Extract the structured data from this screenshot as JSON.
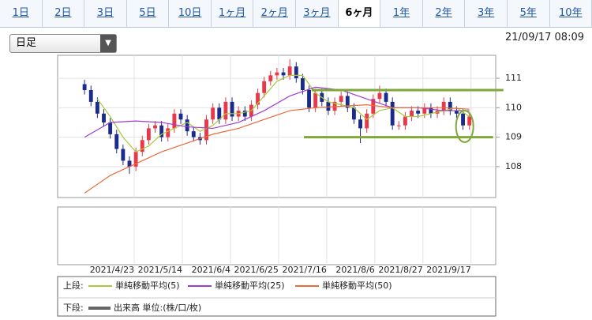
{
  "tabs": [
    "1日",
    "2日",
    "3日",
    "5日",
    "10日",
    "1ヶ月",
    "2ヶ月",
    "3ヶ月",
    "6ヶ月",
    "1年",
    "2年",
    "3年",
    "5年",
    "10年"
  ],
  "active_tab": 8,
  "period_select": "日足",
  "timestamp": "21/09/17 08:09",
  "chart_data": {
    "type": "candlestick",
    "xlim": [
      -4.2,
      64.1
    ],
    "xticks": [
      {
        "value": 7.75,
        "label": "2021/4/23"
      },
      {
        "value": 15.25,
        "label": "2021/5/14"
      },
      {
        "value": 22.75,
        "label": "2021/6/4"
      },
      {
        "value": 30.25,
        "label": "2021/6/25"
      },
      {
        "value": 37.75,
        "label": "2021/7/16"
      },
      {
        "value": 45.25,
        "label": "2021/8/6"
      },
      {
        "value": 52.75,
        "label": "2021/8/27"
      },
      {
        "value": 60.25,
        "label": "2021/9/17"
      }
    ],
    "ylim": [
      106.95,
      111.78
    ],
    "yticks": [
      108,
      109,
      110,
      111
    ],
    "up_color": "#e8384a",
    "down_color": "#1b2b8c",
    "open": [
      110.8,
      110.6,
      110.2,
      109.8,
      109.5,
      109.1,
      108.6,
      108.2,
      108.0,
      108.5,
      108.9,
      109.3,
      109.4,
      109.0,
      109.3,
      109.8,
      109.6,
      109.2,
      109.0,
      108.9,
      109.6,
      110.0,
      109.6,
      110.2,
      109.7,
      109.9,
      109.7,
      110.1,
      110.5,
      110.9,
      111.1,
      111.2,
      111.1,
      111.4,
      111.0,
      110.6,
      110.0,
      110.5,
      110.2,
      109.9,
      110.2,
      110.4,
      110.0,
      109.6,
      109.3,
      109.8,
      110.3,
      110.5,
      110.2,
      109.4,
      109.4,
      109.7,
      109.9,
      109.8,
      110.0,
      109.8,
      109.9,
      110.2,
      109.9,
      109.8,
      109.4
    ],
    "high": [
      110.95,
      110.75,
      110.35,
      109.95,
      109.65,
      109.25,
      108.75,
      108.35,
      108.65,
      109.05,
      109.45,
      109.55,
      109.55,
      109.45,
      109.95,
      109.95,
      109.75,
      109.35,
      109.15,
      109.75,
      110.15,
      110.15,
      110.35,
      110.35,
      110.05,
      110.05,
      110.25,
      110.65,
      111.05,
      111.25,
      111.35,
      111.35,
      111.65,
      111.55,
      111.15,
      110.75,
      110.65,
      110.65,
      110.35,
      110.35,
      110.55,
      110.55,
      110.15,
      109.75,
      109.95,
      110.45,
      110.75,
      110.65,
      110.35,
      109.55,
      109.85,
      110.05,
      110.05,
      110.15,
      110.15,
      110.05,
      110.35,
      110.35,
      110.05,
      109.95,
      109.85
    ],
    "low": [
      110.45,
      110.05,
      109.65,
      109.35,
      108.95,
      108.45,
      108.05,
      107.75,
      107.85,
      108.35,
      108.75,
      109.15,
      108.85,
      108.85,
      109.15,
      109.45,
      109.05,
      108.85,
      108.75,
      108.75,
      109.45,
      109.45,
      109.45,
      109.55,
      109.55,
      109.55,
      109.55,
      109.95,
      110.35,
      110.75,
      110.95,
      110.95,
      110.95,
      110.85,
      110.45,
      109.85,
      109.85,
      110.05,
      109.75,
      109.75,
      110.05,
      109.85,
      109.45,
      108.8,
      109.15,
      109.65,
      110.15,
      110.05,
      109.25,
      109.25,
      109.25,
      109.55,
      109.65,
      109.65,
      109.65,
      109.65,
      109.75,
      109.75,
      109.65,
      109.25,
      109.25
    ],
    "close": [
      110.6,
      110.2,
      109.8,
      109.5,
      109.1,
      108.6,
      108.2,
      108.0,
      108.5,
      108.9,
      109.3,
      109.4,
      109.0,
      109.3,
      109.8,
      109.6,
      109.2,
      109.0,
      108.9,
      109.6,
      110.0,
      109.6,
      110.2,
      109.7,
      109.9,
      109.7,
      110.1,
      110.5,
      110.9,
      111.1,
      111.2,
      111.1,
      111.4,
      111.0,
      110.6,
      110.0,
      110.5,
      110.2,
      109.9,
      110.2,
      110.4,
      110.0,
      109.6,
      109.3,
      109.8,
      110.3,
      110.5,
      110.2,
      109.4,
      109.4,
      109.7,
      109.9,
      109.8,
      110.0,
      109.8,
      109.9,
      110.2,
      109.9,
      109.8,
      109.4,
      109.7
    ],
    "upper_label": "上段:",
    "series": [
      {
        "name": "単純移動平均(5)",
        "color": "#a9c93a",
        "x": [
          2,
          4,
          6,
          8,
          10,
          12,
          14,
          16,
          18,
          20,
          22,
          24,
          26,
          28,
          30,
          32,
          34,
          36,
          38,
          40,
          42,
          44,
          46,
          48,
          50,
          52,
          54,
          56,
          58,
          60
        ],
        "values": [
          110.3,
          109.7,
          109.0,
          108.5,
          108.7,
          109.1,
          109.3,
          109.5,
          109.2,
          109.4,
          109.8,
          109.8,
          109.9,
          110.4,
          110.9,
          111.1,
          111.1,
          110.5,
          110.2,
          110.1,
          110.0,
          109.6,
          109.9,
          110.0,
          109.7,
          109.7,
          109.8,
          109.9,
          110.0,
          109.7
        ]
      },
      {
        "name": "単純移動平均(25)",
        "color": "#a03cd0",
        "x": [
          0,
          4,
          8,
          12,
          16,
          20,
          24,
          28,
          32,
          36,
          40,
          44,
          48,
          52,
          56,
          60
        ],
        "values": [
          109.0,
          109.5,
          109.55,
          109.5,
          109.35,
          109.3,
          109.5,
          109.9,
          110.4,
          110.7,
          110.6,
          110.3,
          110.0,
          110.0,
          109.9,
          109.9
        ]
      },
      {
        "name": "単純移動平均(50)",
        "color": "#ec6a3c",
        "x": [
          0,
          4,
          8,
          12,
          16,
          20,
          24,
          28,
          32,
          36,
          40,
          44,
          48,
          52,
          56,
          60
        ],
        "values": [
          107.1,
          107.7,
          108.1,
          108.5,
          108.8,
          109.1,
          109.3,
          109.6,
          109.9,
          110.0,
          110.05,
          110.1,
          110.0,
          110.0,
          110.0,
          109.95
        ]
      }
    ],
    "lower_label": "下段:",
    "lower_legend": "出来高 単位:(株/口/枚)",
    "lower_color": "#666666",
    "annotations": [
      {
        "y": 110.6,
        "x": [
          35.4,
          65.3
        ],
        "color": "#7fa83a"
      },
      {
        "y": 109.0,
        "x": [
          34.2,
          63.7
        ],
        "color": "#7fa83a"
      }
    ]
  }
}
